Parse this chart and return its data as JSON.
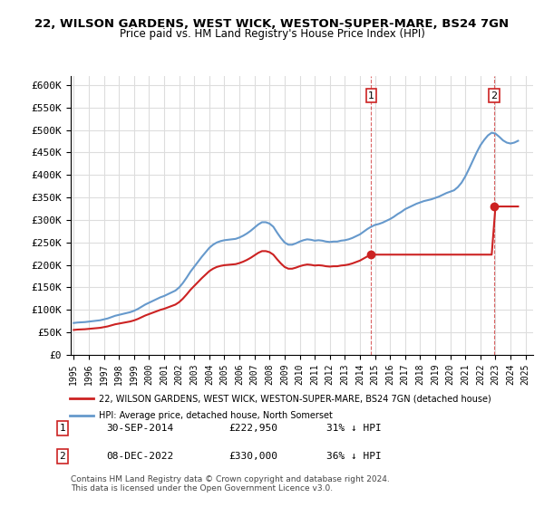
{
  "title": "22, WILSON GARDENS, WEST WICK, WESTON-SUPER-MARE, BS24 7GN",
  "subtitle": "Price paid vs. HM Land Registry's House Price Index (HPI)",
  "ylabel_ticks": [
    "£0",
    "£50K",
    "£100K",
    "£150K",
    "£200K",
    "£250K",
    "£300K",
    "£350K",
    "£400K",
    "£450K",
    "£500K",
    "£550K",
    "£600K"
  ],
  "ytick_values": [
    0,
    50000,
    100000,
    150000,
    200000,
    250000,
    300000,
    350000,
    400000,
    450000,
    500000,
    550000,
    600000
  ],
  "xticklabels": [
    "1995",
    "1996",
    "1997",
    "1998",
    "1999",
    "2000",
    "2001",
    "2002",
    "2003",
    "2004",
    "2005",
    "2006",
    "2007",
    "2008",
    "2009",
    "2010",
    "2011",
    "2012",
    "2013",
    "2014",
    "2015",
    "2016",
    "2017",
    "2018",
    "2019",
    "2020",
    "2021",
    "2022",
    "2023",
    "2024",
    "2025"
  ],
  "hpi_color": "#6699cc",
  "price_color": "#cc2222",
  "marker1_color": "#cc2222",
  "marker2_color": "#cc2222",
  "annotation1_color": "#cc2222",
  "annotation2_color": "#cc2222",
  "vline1_color": "#cc2222",
  "vline2_color": "#cc2222",
  "legend_label1": "22, WILSON GARDENS, WEST WICK, WESTON-SUPER-MARE, BS24 7GN (detached house)",
  "legend_label2": "HPI: Average price, detached house, North Somerset",
  "note1_num": "1",
  "note1_date": "30-SEP-2014",
  "note1_price": "£222,950",
  "note1_hpi": "31% ↓ HPI",
  "note2_num": "2",
  "note2_date": "08-DEC-2022",
  "note2_price": "£330,000",
  "note2_hpi": "36% ↓ HPI",
  "footer": "Contains HM Land Registry data © Crown copyright and database right 2024.\nThis data is licensed under the Open Government Licence v3.0.",
  "bg_color": "#ffffff",
  "grid_color": "#dddddd",
  "hpi_data": {
    "years": [
      1995.0,
      1995.25,
      1995.5,
      1995.75,
      1996.0,
      1996.25,
      1996.5,
      1996.75,
      1997.0,
      1997.25,
      1997.5,
      1997.75,
      1998.0,
      1998.25,
      1998.5,
      1998.75,
      1999.0,
      1999.25,
      1999.5,
      1999.75,
      2000.0,
      2000.25,
      2000.5,
      2000.75,
      2001.0,
      2001.25,
      2001.5,
      2001.75,
      2002.0,
      2002.25,
      2002.5,
      2002.75,
      2003.0,
      2003.25,
      2003.5,
      2003.75,
      2004.0,
      2004.25,
      2004.5,
      2004.75,
      2005.0,
      2005.25,
      2005.5,
      2005.75,
      2006.0,
      2006.25,
      2006.5,
      2006.75,
      2007.0,
      2007.25,
      2007.5,
      2007.75,
      2008.0,
      2008.25,
      2008.5,
      2008.75,
      2009.0,
      2009.25,
      2009.5,
      2009.75,
      2010.0,
      2010.25,
      2010.5,
      2010.75,
      2011.0,
      2011.25,
      2011.5,
      2011.75,
      2012.0,
      2012.25,
      2012.5,
      2012.75,
      2013.0,
      2013.25,
      2013.5,
      2013.75,
      2014.0,
      2014.25,
      2014.5,
      2014.75,
      2015.0,
      2015.25,
      2015.5,
      2015.75,
      2016.0,
      2016.25,
      2016.5,
      2016.75,
      2017.0,
      2017.25,
      2017.5,
      2017.75,
      2018.0,
      2018.25,
      2018.5,
      2018.75,
      2019.0,
      2019.25,
      2019.5,
      2019.75,
      2020.0,
      2020.25,
      2020.5,
      2020.75,
      2021.0,
      2021.25,
      2021.5,
      2021.75,
      2022.0,
      2022.25,
      2022.5,
      2022.75,
      2023.0,
      2023.25,
      2023.5,
      2023.75,
      2024.0,
      2024.25,
      2024.5
    ],
    "values": [
      71000,
      72000,
      72500,
      73000,
      74000,
      75000,
      76000,
      77000,
      79000,
      81000,
      84000,
      87000,
      89000,
      91000,
      93000,
      95000,
      98000,
      102000,
      107000,
      112000,
      116000,
      120000,
      124000,
      128000,
      131000,
      135000,
      139000,
      143000,
      150000,
      160000,
      172000,
      185000,
      196000,
      207000,
      218000,
      228000,
      238000,
      245000,
      250000,
      253000,
      255000,
      256000,
      257000,
      258000,
      261000,
      265000,
      270000,
      276000,
      283000,
      290000,
      295000,
      295000,
      292000,
      285000,
      272000,
      260000,
      250000,
      245000,
      245000,
      248000,
      252000,
      255000,
      257000,
      256000,
      254000,
      255000,
      254000,
      252000,
      251000,
      252000,
      252000,
      254000,
      255000,
      257000,
      260000,
      264000,
      268000,
      274000,
      280000,
      285000,
      289000,
      291000,
      294000,
      298000,
      302000,
      307000,
      313000,
      318000,
      324000,
      328000,
      332000,
      336000,
      339000,
      342000,
      344000,
      346000,
      349000,
      352000,
      356000,
      360000,
      363000,
      366000,
      373000,
      383000,
      397000,
      414000,
      432000,
      450000,
      466000,
      478000,
      488000,
      494000,
      492000,
      485000,
      477000,
      472000,
      470000,
      472000,
      476000
    ]
  },
  "sale1_year": 2014.75,
  "sale1_price": 222950,
  "sale2_year": 2022.92,
  "sale2_price": 330000,
  "xlim": [
    1994.8,
    2025.5
  ],
  "ylim": [
    0,
    620000
  ]
}
